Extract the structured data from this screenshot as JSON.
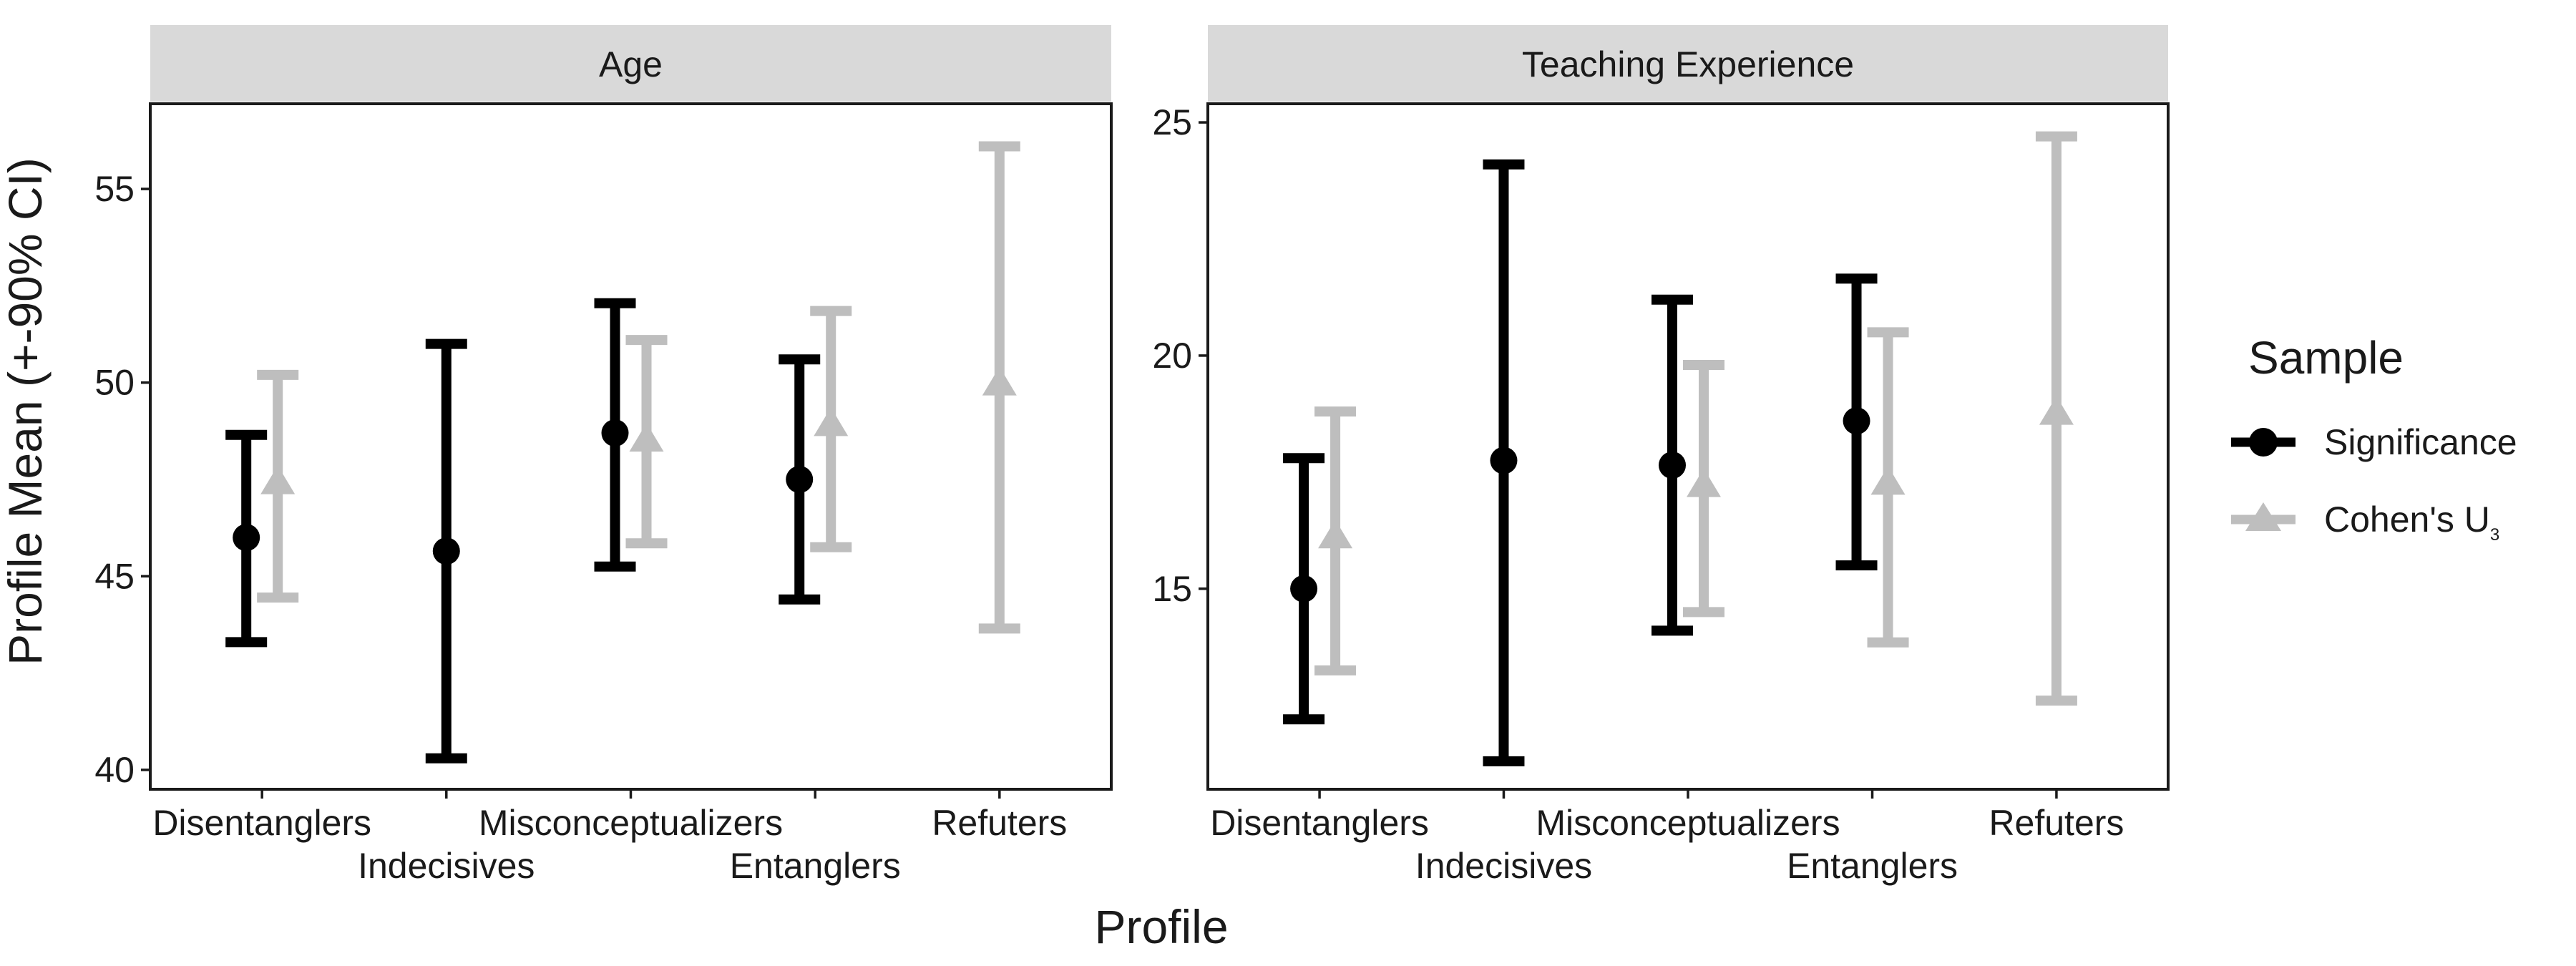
{
  "chart_data": {
    "type": "errorbar",
    "y_axis_title": "Profile Mean (+-90% CI)",
    "x_axis_title": "Profile",
    "categories": [
      "Disentanglers",
      "Indecisives",
      "Misconceptualizers",
      "Entanglers",
      "Refuters"
    ],
    "legend": {
      "title": "Sample",
      "placement": "right",
      "entries": [
        {
          "key": "significance",
          "label": "Significance",
          "shape": "circle",
          "color": "#000000"
        },
        {
          "key": "cohens_u3",
          "label": "Cohen's U",
          "subscript": "3",
          "shape": "triangle",
          "color": "#bebebe"
        }
      ]
    },
    "panels": [
      {
        "title": "Age",
        "ylim": [
          39.5,
          57.2
        ],
        "yticks": [
          40,
          45,
          50,
          55
        ],
        "series": [
          {
            "key": "significance",
            "values": [
              {
                "category": "Disentanglers",
                "mean": 46.0,
                "lower": 43.3,
                "upper": 48.65
              },
              {
                "category": "Indecisives",
                "mean": 45.65,
                "lower": 40.3,
                "upper": 51.0
              },
              {
                "category": "Misconceptualizers",
                "mean": 48.7,
                "lower": 45.25,
                "upper": 52.05
              },
              {
                "category": "Entanglers",
                "mean": 47.5,
                "lower": 44.4,
                "upper": 50.6
              }
            ]
          },
          {
            "key": "cohens_u3",
            "values": [
              {
                "category": "Disentanglers",
                "mean": 47.4,
                "lower": 44.45,
                "upper": 50.2
              },
              {
                "category": "Misconceptualizers",
                "mean": 48.5,
                "lower": 45.85,
                "upper": 51.1
              },
              {
                "category": "Entanglers",
                "mean": 48.9,
                "lower": 45.75,
                "upper": 51.85
              },
              {
                "category": "Refuters",
                "mean": 49.95,
                "lower": 43.65,
                "upper": 56.1
              }
            ]
          }
        ]
      },
      {
        "title": "Teaching Experience",
        "ylim": [
          10.7,
          25.4
        ],
        "yticks": [
          15,
          20,
          25
        ],
        "series": [
          {
            "key": "significance",
            "values": [
              {
                "category": "Disentanglers",
                "mean": 15.0,
                "lower": 12.2,
                "upper": 17.8
              },
              {
                "category": "Indecisives",
                "mean": 17.75,
                "lower": 11.3,
                "upper": 24.1
              },
              {
                "category": "Misconceptualizers",
                "mean": 17.65,
                "lower": 14.1,
                "upper": 21.2
              },
              {
                "category": "Entanglers",
                "mean": 18.6,
                "lower": 15.5,
                "upper": 21.65
              }
            ]
          },
          {
            "key": "cohens_u3",
            "values": [
              {
                "category": "Disentanglers",
                "mean": 16.1,
                "lower": 13.25,
                "upper": 18.8
              },
              {
                "category": "Misconceptualizers",
                "mean": 17.2,
                "lower": 14.5,
                "upper": 19.8
              },
              {
                "category": "Entanglers",
                "mean": 17.25,
                "lower": 13.85,
                "upper": 20.5
              },
              {
                "category": "Refuters",
                "mean": 18.75,
                "lower": 12.6,
                "upper": 24.7
              }
            ]
          }
        ]
      }
    ]
  }
}
